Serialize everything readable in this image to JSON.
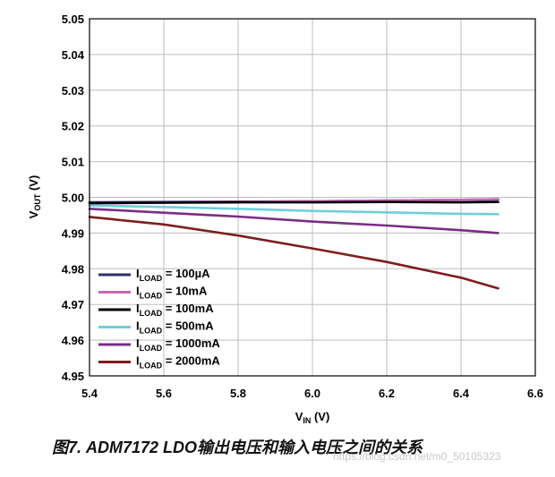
{
  "chart_data": {
    "type": "line",
    "xlabel_main": "V",
    "xlabel_sub": "IN",
    "xlabel_unit": " (V)",
    "ylabel_main": "V",
    "ylabel_sub": "OUT",
    "ylabel_unit": " (V)",
    "xlim": [
      5.4,
      6.6
    ],
    "ylim": [
      4.95,
      5.05
    ],
    "xticks": [
      "5.4",
      "5.6",
      "5.8",
      "6.0",
      "6.2",
      "6.4",
      "6.6"
    ],
    "yticks": [
      "5.05",
      "5.04",
      "5.03",
      "5.02",
      "5.01",
      "5.00",
      "4.99",
      "4.98",
      "4.97",
      "4.96",
      "4.95"
    ],
    "grid": true,
    "legend_position": "bottom-left",
    "series": [
      {
        "label_main": "I",
        "label_sub": "LOAD",
        "label_value": " = 100µA",
        "color": "#2e2f6b",
        "x": [
          5.4,
          5.6,
          5.8,
          6.0,
          6.2,
          6.4,
          6.5
        ],
        "y": [
          4.9986,
          4.9987,
          4.9988,
          4.9989,
          4.9991,
          4.9993,
          4.9994
        ]
      },
      {
        "label_main": "I",
        "label_sub": "LOAD",
        "label_value": " = 10mA",
        "color": "#cc66b8",
        "x": [
          5.4,
          5.6,
          5.8,
          6.0,
          6.2,
          6.4,
          6.5
        ],
        "y": [
          4.9983,
          4.9985,
          4.9987,
          4.9989,
          4.9991,
          4.9993,
          4.9995
        ]
      },
      {
        "label_main": "I",
        "label_sub": "LOAD",
        "label_value": " = 100mA",
        "color": "#000000",
        "x": [
          5.4,
          5.6,
          5.8,
          6.0,
          6.2,
          6.4,
          6.5
        ],
        "y": [
          4.9984,
          4.9985,
          4.9986,
          4.9986,
          4.9987,
          4.9986,
          4.9987
        ]
      },
      {
        "label_main": "I",
        "label_sub": "LOAD",
        "label_value": " = 500mA",
        "color": "#6fcfd8",
        "x": [
          5.4,
          5.6,
          5.8,
          6.0,
          6.2,
          6.4,
          6.5
        ],
        "y": [
          4.9977,
          4.9973,
          4.9968,
          4.9962,
          4.9958,
          4.9954,
          4.9953
        ]
      },
      {
        "label_main": "I",
        "label_sub": "LOAD",
        "label_value": " = 1000mA",
        "color": "#7a2d86",
        "x": [
          5.4,
          5.6,
          5.8,
          6.0,
          6.2,
          6.4,
          6.5
        ],
        "y": [
          4.9968,
          4.9957,
          4.9946,
          4.9932,
          4.9921,
          4.9908,
          4.99
        ]
      },
      {
        "label_main": "I",
        "label_sub": "LOAD",
        "label_value": " = 2000mA",
        "color": "#7f1d1d",
        "x": [
          5.4,
          5.6,
          5.8,
          6.0,
          6.2,
          6.4,
          6.5
        ],
        "y": [
          4.9945,
          4.9924,
          4.9893,
          4.9857,
          4.9819,
          4.9775,
          4.9745
        ]
      }
    ]
  },
  "caption": {
    "figure_no": "图7.",
    "text": " ADM7172 LDO输出电压和输入电压之间的关系"
  },
  "watermark": "https://blog.csdn.net/m0_50105323"
}
